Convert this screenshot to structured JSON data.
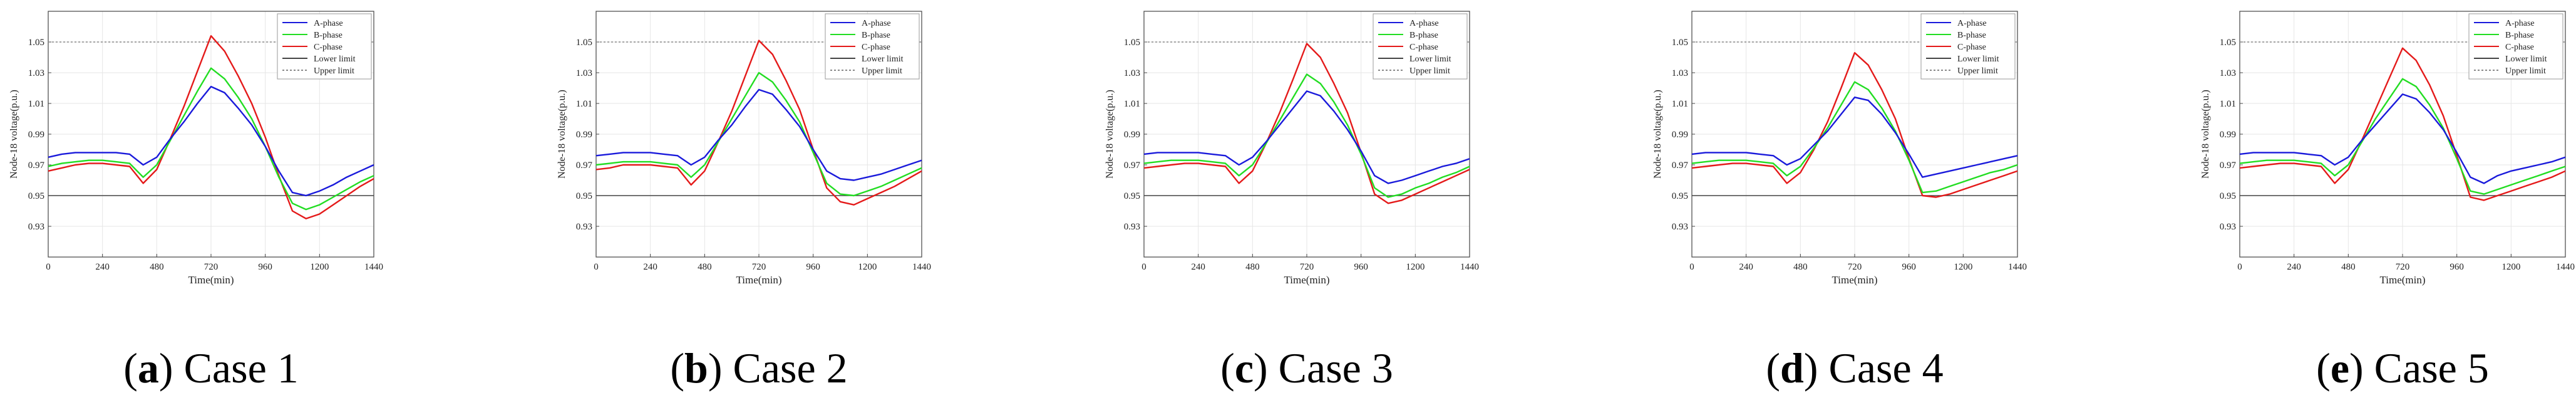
{
  "chart_data": [
    {
      "type": "line",
      "caption_letter": "a",
      "caption_text": "Case 1",
      "xlabel": "Time(min)",
      "ylabel": "Node-18 voltage(p.u.)",
      "xlim": [
        0,
        1440
      ],
      "ylim": [
        0.91,
        1.07
      ],
      "xticks": [
        0,
        240,
        480,
        720,
        960,
        1200,
        1440
      ],
      "yticks": [
        0.93,
        0.95,
        0.97,
        0.99,
        1.01,
        1.03,
        1.05
      ],
      "grid": true,
      "legend_position": "top-right",
      "limits": [
        {
          "name": "Lower limit",
          "value": 0.95
        },
        {
          "name": "Upper limit",
          "value": 1.05
        }
      ],
      "series": [
        {
          "name": "A-phase",
          "x": [
            0,
            60,
            120,
            180,
            240,
            300,
            360,
            420,
            480,
            540,
            600,
            660,
            720,
            780,
            840,
            900,
            960,
            1020,
            1080,
            1140,
            1200,
            1260,
            1320,
            1380,
            1440
          ],
          "values": [
            0.975,
            0.977,
            0.978,
            0.978,
            0.978,
            0.978,
            0.977,
            0.97,
            0.975,
            0.987,
            0.998,
            1.01,
            1.021,
            1.017,
            1.007,
            0.996,
            0.982,
            0.966,
            0.952,
            0.95,
            0.953,
            0.957,
            0.962,
            0.966,
            0.97
          ]
        },
        {
          "name": "B-phase",
          "x": [
            0,
            60,
            120,
            180,
            240,
            300,
            360,
            420,
            480,
            540,
            600,
            660,
            720,
            780,
            840,
            900,
            960,
            1020,
            1080,
            1140,
            1200,
            1260,
            1320,
            1380,
            1440
          ],
          "values": [
            0.969,
            0.971,
            0.972,
            0.973,
            0.973,
            0.972,
            0.971,
            0.962,
            0.97,
            0.986,
            1.002,
            1.018,
            1.033,
            1.026,
            1.014,
            1.0,
            0.982,
            0.962,
            0.945,
            0.941,
            0.944,
            0.949,
            0.954,
            0.959,
            0.963
          ]
        },
        {
          "name": "C-phase",
          "x": [
            0,
            60,
            120,
            180,
            240,
            300,
            360,
            420,
            480,
            540,
            600,
            660,
            720,
            780,
            840,
            900,
            960,
            1020,
            1080,
            1140,
            1200,
            1260,
            1320,
            1380,
            1440
          ],
          "values": [
            0.966,
            0.968,
            0.97,
            0.971,
            0.971,
            0.97,
            0.969,
            0.958,
            0.967,
            0.987,
            1.008,
            1.031,
            1.054,
            1.044,
            1.028,
            1.01,
            0.988,
            0.963,
            0.94,
            0.935,
            0.938,
            0.944,
            0.95,
            0.956,
            0.961
          ]
        }
      ]
    },
    {
      "type": "line",
      "caption_letter": "b",
      "caption_text": "Case 2",
      "xlabel": "Time(min)",
      "ylabel": "Node-18 voltage(p.u.)",
      "xlim": [
        0,
        1440
      ],
      "ylim": [
        0.91,
        1.07
      ],
      "xticks": [
        0,
        240,
        480,
        720,
        960,
        1200,
        1440
      ],
      "yticks": [
        0.93,
        0.95,
        0.97,
        0.99,
        1.01,
        1.03,
        1.05
      ],
      "grid": true,
      "legend_position": "top-right",
      "limits": [
        {
          "name": "Lower limit",
          "value": 0.95
        },
        {
          "name": "Upper limit",
          "value": 1.05
        }
      ],
      "series": [
        {
          "name": "A-phase",
          "x": [
            0,
            60,
            120,
            180,
            240,
            300,
            360,
            420,
            480,
            540,
            600,
            660,
            720,
            780,
            840,
            900,
            960,
            1020,
            1080,
            1140,
            1200,
            1260,
            1320,
            1380,
            1440
          ],
          "values": [
            0.976,
            0.977,
            0.978,
            0.978,
            0.978,
            0.977,
            0.976,
            0.97,
            0.975,
            0.986,
            0.996,
            1.008,
            1.019,
            1.016,
            1.006,
            0.995,
            0.98,
            0.966,
            0.961,
            0.96,
            0.962,
            0.964,
            0.967,
            0.97,
            0.973
          ]
        },
        {
          "name": "B-phase",
          "x": [
            0,
            60,
            120,
            180,
            240,
            300,
            360,
            420,
            480,
            540,
            600,
            660,
            720,
            780,
            840,
            900,
            960,
            1020,
            1080,
            1140,
            1200,
            1260,
            1320,
            1380,
            1440
          ],
          "values": [
            0.97,
            0.971,
            0.972,
            0.972,
            0.972,
            0.971,
            0.97,
            0.962,
            0.97,
            0.985,
            1.0,
            1.015,
            1.03,
            1.024,
            1.012,
            0.998,
            0.978,
            0.958,
            0.951,
            0.95,
            0.953,
            0.956,
            0.96,
            0.964,
            0.968
          ]
        },
        {
          "name": "C-phase",
          "x": [
            0,
            60,
            120,
            180,
            240,
            300,
            360,
            420,
            480,
            540,
            600,
            660,
            720,
            780,
            840,
            900,
            960,
            1020,
            1080,
            1140,
            1200,
            1260,
            1320,
            1380,
            1440
          ],
          "values": [
            0.967,
            0.968,
            0.97,
            0.97,
            0.97,
            0.969,
            0.968,
            0.957,
            0.966,
            0.985,
            1.005,
            1.028,
            1.051,
            1.042,
            1.025,
            1.006,
            0.98,
            0.955,
            0.946,
            0.944,
            0.948,
            0.952,
            0.956,
            0.961,
            0.966
          ]
        }
      ]
    },
    {
      "type": "line",
      "caption_letter": "c",
      "caption_text": "Case 3",
      "xlabel": "Time(min)",
      "ylabel": "Node-18 voltage(p.u.)",
      "xlim": [
        0,
        1440
      ],
      "ylim": [
        0.91,
        1.07
      ],
      "xticks": [
        0,
        240,
        480,
        720,
        960,
        1200,
        1440
      ],
      "yticks": [
        0.93,
        0.95,
        0.97,
        0.99,
        1.01,
        1.03,
        1.05
      ],
      "grid": true,
      "legend_position": "top-right",
      "limits": [
        {
          "name": "Lower limit",
          "value": 0.95
        },
        {
          "name": "Upper limit",
          "value": 1.05
        }
      ],
      "series": [
        {
          "name": "A-phase",
          "x": [
            0,
            60,
            120,
            180,
            240,
            300,
            360,
            420,
            480,
            540,
            600,
            660,
            720,
            780,
            840,
            900,
            960,
            1020,
            1080,
            1140,
            1200,
            1260,
            1320,
            1380,
            1440
          ],
          "values": [
            0.977,
            0.978,
            0.978,
            0.978,
            0.978,
            0.977,
            0.976,
            0.97,
            0.975,
            0.985,
            0.996,
            1.007,
            1.018,
            1.015,
            1.005,
            0.993,
            0.979,
            0.963,
            0.958,
            0.96,
            0.963,
            0.966,
            0.969,
            0.971,
            0.974
          ]
        },
        {
          "name": "B-phase",
          "x": [
            0,
            60,
            120,
            180,
            240,
            300,
            360,
            420,
            480,
            540,
            600,
            660,
            720,
            780,
            840,
            900,
            960,
            1020,
            1080,
            1140,
            1200,
            1260,
            1320,
            1380,
            1440
          ],
          "values": [
            0.971,
            0.972,
            0.973,
            0.973,
            0.973,
            0.972,
            0.971,
            0.963,
            0.97,
            0.984,
            0.999,
            1.014,
            1.029,
            1.023,
            1.011,
            0.996,
            0.977,
            0.955,
            0.949,
            0.951,
            0.955,
            0.958,
            0.962,
            0.965,
            0.969
          ]
        },
        {
          "name": "C-phase",
          "x": [
            0,
            60,
            120,
            180,
            240,
            300,
            360,
            420,
            480,
            540,
            600,
            660,
            720,
            780,
            840,
            900,
            960,
            1020,
            1080,
            1140,
            1200,
            1260,
            1320,
            1380,
            1440
          ],
          "values": [
            0.968,
            0.969,
            0.97,
            0.971,
            0.971,
            0.97,
            0.969,
            0.958,
            0.966,
            0.984,
            1.004,
            1.026,
            1.049,
            1.04,
            1.023,
            1.004,
            0.978,
            0.951,
            0.945,
            0.947,
            0.951,
            0.955,
            0.959,
            0.963,
            0.967
          ]
        }
      ]
    },
    {
      "type": "line",
      "caption_letter": "d",
      "caption_text": "Case 4",
      "xlabel": "Time(min)",
      "ylabel": "Node-18 voltage(p.u.)",
      "xlim": [
        0,
        1440
      ],
      "ylim": [
        0.91,
        1.07
      ],
      "xticks": [
        0,
        240,
        480,
        720,
        960,
        1200,
        1440
      ],
      "yticks": [
        0.93,
        0.95,
        0.97,
        0.99,
        1.01,
        1.03,
        1.05
      ],
      "grid": true,
      "legend_position": "top-right",
      "limits": [
        {
          "name": "Lower limit",
          "value": 0.95
        },
        {
          "name": "Upper limit",
          "value": 1.05
        }
      ],
      "series": [
        {
          "name": "A-phase",
          "x": [
            0,
            60,
            120,
            180,
            240,
            300,
            360,
            420,
            480,
            540,
            600,
            660,
            720,
            780,
            840,
            900,
            960,
            1020,
            1080,
            1140,
            1200,
            1260,
            1320,
            1380,
            1440
          ],
          "values": [
            0.977,
            0.978,
            0.978,
            0.978,
            0.978,
            0.977,
            0.976,
            0.97,
            0.974,
            0.983,
            0.992,
            1.003,
            1.014,
            1.012,
            1.003,
            0.991,
            0.977,
            0.962,
            0.964,
            0.966,
            0.968,
            0.97,
            0.972,
            0.974,
            0.976
          ]
        },
        {
          "name": "B-phase",
          "x": [
            0,
            60,
            120,
            180,
            240,
            300,
            360,
            420,
            480,
            540,
            600,
            660,
            720,
            780,
            840,
            900,
            960,
            1020,
            1080,
            1140,
            1200,
            1260,
            1320,
            1380,
            1440
          ],
          "values": [
            0.971,
            0.972,
            0.973,
            0.973,
            0.973,
            0.972,
            0.971,
            0.963,
            0.969,
            0.981,
            0.994,
            1.009,
            1.024,
            1.019,
            1.007,
            0.992,
            0.973,
            0.952,
            0.953,
            0.956,
            0.959,
            0.962,
            0.965,
            0.967,
            0.97
          ]
        },
        {
          "name": "C-phase",
          "x": [
            0,
            60,
            120,
            180,
            240,
            300,
            360,
            420,
            480,
            540,
            600,
            660,
            720,
            780,
            840,
            900,
            960,
            1020,
            1080,
            1140,
            1200,
            1260,
            1320,
            1380,
            1440
          ],
          "values": [
            0.968,
            0.969,
            0.97,
            0.971,
            0.971,
            0.97,
            0.969,
            0.958,
            0.965,
            0.98,
            0.998,
            1.02,
            1.043,
            1.035,
            1.019,
            1.0,
            0.974,
            0.95,
            0.949,
            0.951,
            0.954,
            0.957,
            0.96,
            0.963,
            0.966
          ]
        }
      ]
    },
    {
      "type": "line",
      "caption_letter": "e",
      "caption_text": "Case 5",
      "xlabel": "Time(min)",
      "ylabel": "Node-18 voltage(p.u.)",
      "xlim": [
        0,
        1440
      ],
      "ylim": [
        0.91,
        1.07
      ],
      "xticks": [
        0,
        240,
        480,
        720,
        960,
        1200,
        1440
      ],
      "yticks": [
        0.93,
        0.95,
        0.97,
        0.99,
        1.01,
        1.03,
        1.05
      ],
      "grid": true,
      "legend_position": "top-right",
      "limits": [
        {
          "name": "Lower limit",
          "value": 0.95
        },
        {
          "name": "Upper limit",
          "value": 1.05
        }
      ],
      "series": [
        {
          "name": "A-phase",
          "x": [
            0,
            60,
            120,
            180,
            240,
            300,
            360,
            420,
            480,
            540,
            600,
            660,
            720,
            780,
            840,
            900,
            960,
            1020,
            1080,
            1140,
            1200,
            1260,
            1320,
            1380,
            1440
          ],
          "values": [
            0.977,
            0.978,
            0.978,
            0.978,
            0.978,
            0.977,
            0.976,
            0.97,
            0.975,
            0.986,
            0.996,
            1.006,
            1.016,
            1.013,
            1.004,
            0.993,
            0.978,
            0.962,
            0.958,
            0.963,
            0.966,
            0.968,
            0.97,
            0.972,
            0.975
          ]
        },
        {
          "name": "B-phase",
          "x": [
            0,
            60,
            120,
            180,
            240,
            300,
            360,
            420,
            480,
            540,
            600,
            660,
            720,
            780,
            840,
            900,
            960,
            1020,
            1080,
            1140,
            1200,
            1260,
            1320,
            1380,
            1440
          ],
          "values": [
            0.971,
            0.972,
            0.973,
            0.973,
            0.973,
            0.972,
            0.971,
            0.963,
            0.97,
            0.985,
            1.0,
            1.013,
            1.026,
            1.021,
            1.009,
            0.994,
            0.974,
            0.953,
            0.951,
            0.954,
            0.957,
            0.96,
            0.963,
            0.966,
            0.969
          ]
        },
        {
          "name": "C-phase",
          "x": [
            0,
            60,
            120,
            180,
            240,
            300,
            360,
            420,
            480,
            540,
            600,
            660,
            720,
            780,
            840,
            900,
            960,
            1020,
            1080,
            1140,
            1200,
            1260,
            1320,
            1380,
            1440
          ],
          "values": [
            0.968,
            0.969,
            0.97,
            0.971,
            0.971,
            0.97,
            0.969,
            0.958,
            0.967,
            0.986,
            1.006,
            1.026,
            1.046,
            1.038,
            1.022,
            1.002,
            0.976,
            0.949,
            0.947,
            0.95,
            0.953,
            0.956,
            0.959,
            0.962,
            0.966
          ]
        }
      ]
    }
  ],
  "colors": {
    "A-phase": "#1a1adb",
    "B-phase": "#22dd22",
    "C-phase": "#e41a1a",
    "Lower limit": "#444444",
    "Upper limit": "#888888",
    "grid": "#e6e6e6",
    "axis": "#444444"
  }
}
